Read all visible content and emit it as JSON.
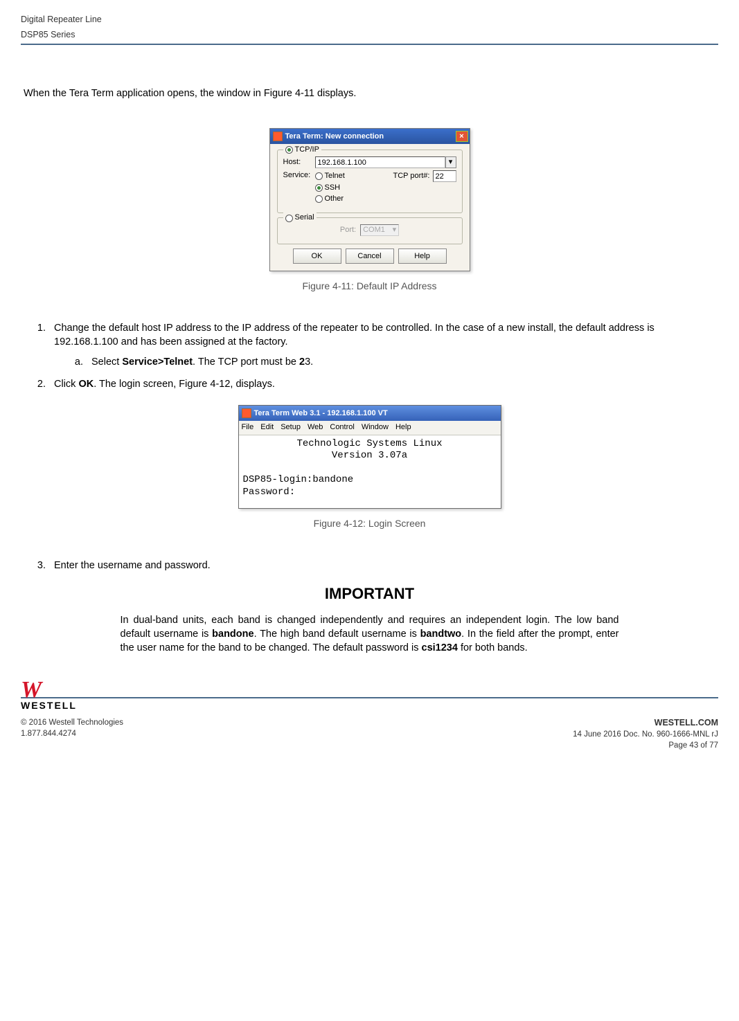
{
  "header": {
    "line1": "Digital Repeater Line",
    "line2": "DSP85 Series"
  },
  "intro": "When the Tera Term application opens, the window in Figure 4-11 displays.",
  "fig1": {
    "caption": "Figure 4-11: Default IP Address",
    "title": "Tera Term: New connection",
    "tcpip": "TCP/IP",
    "host_label": "Host:",
    "host_value": "192.168.1.100",
    "service_label": "Service:",
    "svc_telnet": "Telnet",
    "svc_ssh": "SSH",
    "svc_other": "Other",
    "tcp_port_label": "TCP port#:",
    "tcp_port_value": "22",
    "serial": "Serial",
    "serial_port_label": "Port:",
    "serial_port_value": "COM1",
    "btn_ok": "OK",
    "btn_cancel": "Cancel",
    "btn_help": "Help"
  },
  "step1": {
    "text_a": "Change the default host IP address to the IP address of the repeater to be controlled.  In the case of a new install, the default address is 192.168.1.100 and has been assigned at the factory.",
    "sub_a_pre": "Select ",
    "sub_a_bold": "Service>Telnet",
    "sub_a_mid": ".  The TCP port must be ",
    "sub_a_bold2": "2",
    "sub_a_post": "3."
  },
  "step2": {
    "pre": "Click ",
    "bold": "OK",
    "post": ". The login screen, Figure 4-12, displays."
  },
  "fig2": {
    "caption": "Figure 4-12: Login Screen",
    "title": "Tera Term Web 3.1 - 192.168.1.100 VT",
    "menu": [
      "File",
      "Edit",
      "Setup",
      "Web",
      "Control",
      "Window",
      "Help"
    ],
    "line1": "Technologic Systems Linux",
    "line2": "Version 3.07a",
    "line3": "DSP85-login:bandone",
    "line4": "Password:"
  },
  "step3": "Enter the username and password.",
  "important": {
    "heading": "IMPORTANT",
    "pre": "In dual-band units, each band is changed independently and requires an independent login.  The low band default username is ",
    "b1": "bandone",
    "mid1": ".  The high band default username is ",
    "b2": "bandtwo",
    "mid2": ".  In the field after the prompt, enter the user name for the band to be changed.  The default password is ",
    "b3": "csi1234",
    "post": " for both bands."
  },
  "footer": {
    "brand_site": "WESTELL.COM",
    "copyright": "© 2016 Westell Technologies",
    "phone": "1.877.844.4274",
    "docdate": "14 June 2016 Doc. No. 960-1666-MNL rJ",
    "page": "Page 43 of 77",
    "logo_text": "WESTELL"
  }
}
